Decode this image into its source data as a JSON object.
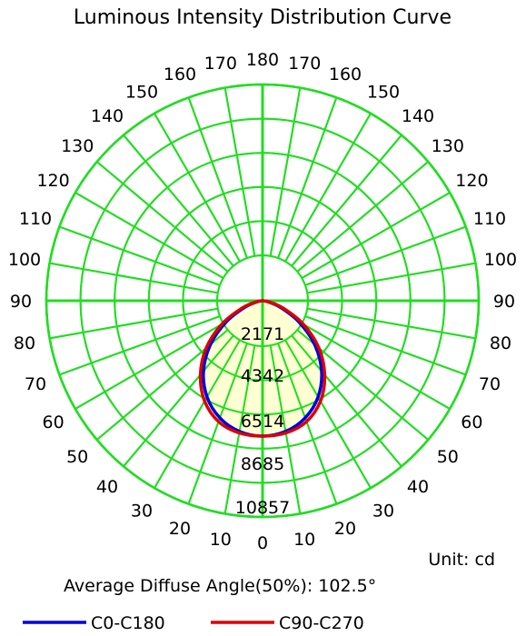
{
  "chart_data": {
    "type": "polar",
    "title": "Luminous Intensity Distribution Curve",
    "unit_label": "Unit: cd",
    "footer": "Average Diffuse Angle(50%): 102.5°",
    "angle_ticks_left": [
      "10",
      "20",
      "30",
      "40",
      "50",
      "60",
      "70",
      "80",
      "90",
      "100",
      "110",
      "120",
      "130",
      "140",
      "150",
      "160",
      "170",
      "180"
    ],
    "angle_ticks_right": [
      "0",
      "10",
      "20",
      "30",
      "40",
      "50",
      "60",
      "70",
      "80",
      "90",
      "100",
      "110",
      "120",
      "130",
      "140",
      "150",
      "160",
      "170"
    ],
    "radial_ticks": [
      "2171",
      "4342",
      "6514",
      "8685",
      "10857"
    ],
    "radial_values": [
      2171,
      4342,
      6514,
      8685,
      10857
    ],
    "rmax": 10857,
    "grid_color": "#22dd22",
    "fill_color": "#ffffcc",
    "series": [
      {
        "name": "C0-C180",
        "color": "#0000dd",
        "angles": [
          0,
          10,
          20,
          30,
          40,
          50,
          60,
          70,
          80,
          90
        ],
        "left": [
          8470,
          8300,
          7800,
          6950,
          5750,
          4250,
          2600,
          1150,
          300,
          0
        ],
        "right": [
          8470,
          8300,
          7800,
          6950,
          5750,
          4250,
          2600,
          1150,
          300,
          0
        ]
      },
      {
        "name": "C90-C270",
        "color": "#dd0000",
        "angles": [
          0,
          10,
          20,
          30,
          40,
          50,
          60,
          70,
          80,
          90
        ],
        "left": [
          8470,
          8400,
          8050,
          7250,
          6050,
          4600,
          2950,
          1400,
          420,
          0
        ],
        "right": [
          8470,
          8400,
          8050,
          7250,
          6050,
          4600,
          2950,
          1400,
          420,
          0
        ]
      }
    ],
    "legend_placement": "bottom"
  }
}
